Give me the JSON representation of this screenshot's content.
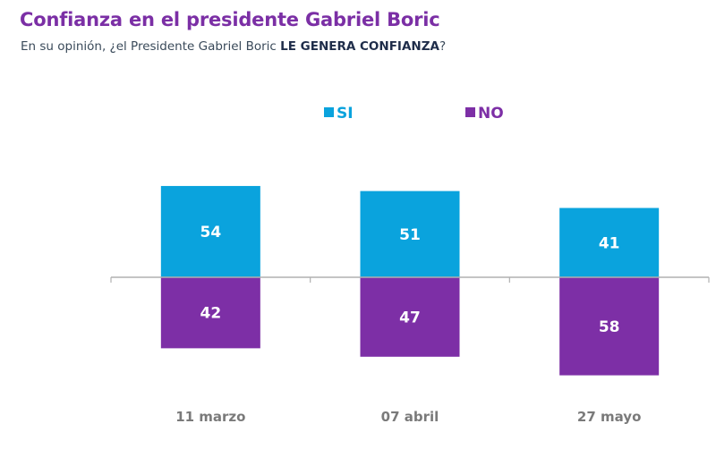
{
  "header": {
    "title": "Confianza en el presidente Gabriel Boric",
    "subtitle_pre": "En su opinión, ¿el Presidente Gabriel Boric ",
    "subtitle_strong": "LE GENERA CONFIANZA",
    "subtitle_post": "?"
  },
  "colors": {
    "si": "#0aa3dd",
    "no": "#7d2fa6",
    "axis": "#b0b0b0"
  },
  "chart_data": {
    "type": "bar",
    "title": "Confianza en el presidente Gabriel Boric",
    "subtitle": "En su opinión, ¿el Presidente Gabriel Boric LE GENERA CONFIANZA?",
    "categories": [
      "11 marzo",
      "07 abril",
      "27 mayo"
    ],
    "series": [
      {
        "name": "SI",
        "values": [
          54,
          51,
          41
        ],
        "direction": "up"
      },
      {
        "name": "NO",
        "values": [
          42,
          47,
          58
        ],
        "direction": "down"
      }
    ],
    "xlabel": "",
    "ylabel": "",
    "ylim": [
      -60,
      60
    ],
    "legend": "top-center",
    "grid": false
  }
}
